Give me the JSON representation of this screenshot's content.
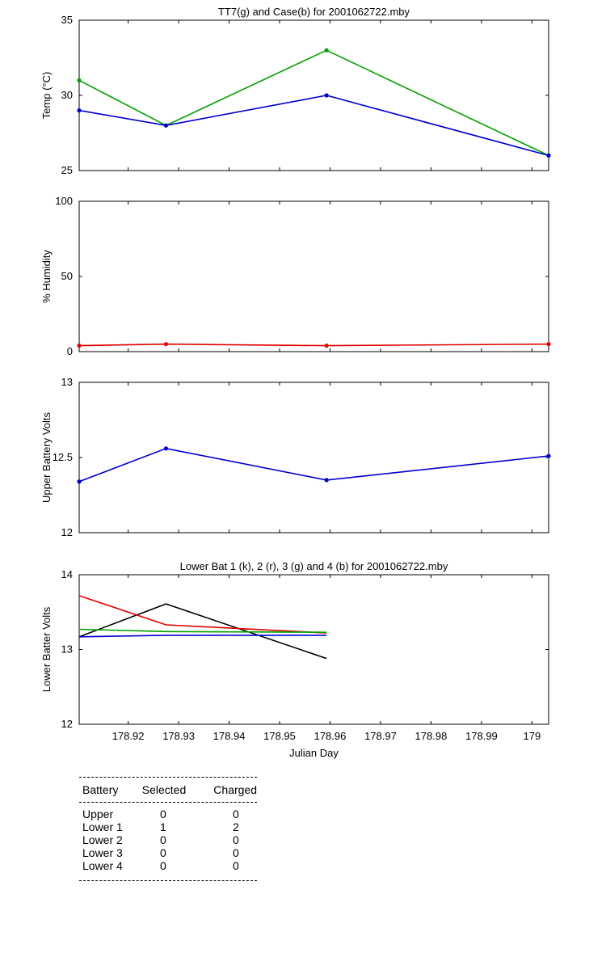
{
  "chart_data": [
    {
      "type": "line",
      "title": "TT7(g) and Case(b) for 2001062722.mby",
      "xlabel": "",
      "ylabel": "Temp  (°C)",
      "xlim": [
        178.9103,
        179.0033
      ],
      "ylim": [
        25,
        35
      ],
      "yticks": [
        "25",
        "30",
        "35"
      ],
      "grid": false,
      "series": [
        {
          "color": "#00a000",
          "marker": true,
          "x": [
            178.9103,
            178.9275,
            178.9593,
            179.0033
          ],
          "y": [
            31,
            28,
            33,
            26
          ]
        },
        {
          "color": "#0000d0",
          "marker": true,
          "x": [
            178.9103,
            178.9275,
            178.9593,
            179.0033
          ],
          "y": [
            29,
            28,
            30,
            26
          ]
        }
      ]
    },
    {
      "type": "line",
      "title": "",
      "xlabel": "",
      "ylabel": "% Humidity",
      "xlim": [
        178.9103,
        179.0033
      ],
      "ylim": [
        0,
        100
      ],
      "yticks": [
        "0",
        "50",
        "100"
      ],
      "grid": false,
      "series": [
        {
          "color": "#e00000",
          "marker": true,
          "x": [
            178.9103,
            178.9275,
            178.9593,
            179.0033
          ],
          "y": [
            4,
            5,
            4,
            5
          ]
        }
      ]
    },
    {
      "type": "line",
      "title": "",
      "xlabel": "",
      "ylabel": "Upper Battery Volts",
      "xlim": [
        178.9103,
        179.0033
      ],
      "ylim": [
        12,
        13
      ],
      "yticks": [
        "12",
        "12.5",
        "13"
      ],
      "grid": false,
      "series": [
        {
          "color": "#0000d0",
          "marker": true,
          "x": [
            178.9103,
            178.9275,
            178.9593,
            179.0033
          ],
          "y": [
            12.34,
            12.56,
            12.35,
            12.51
          ]
        }
      ]
    },
    {
      "type": "line",
      "title": "Lower Bat 1 (k), 2 (r), 3 (g) and 4 (b) for 2001062722.mby",
      "xlabel": "Julian Day",
      "ylabel": "Lower Batter Volts",
      "xlim": [
        178.9103,
        179.0033
      ],
      "ylim": [
        12,
        14
      ],
      "yticks": [
        "12",
        "13",
        "14"
      ],
      "xticks": [
        178.92,
        178.93,
        178.94,
        178.95,
        178.96,
        178.97,
        178.98,
        178.99,
        179.0
      ],
      "xticklabels": [
        "178.92",
        "178.93",
        "178.94",
        "178.95",
        "178.96",
        "178.97",
        "178.98",
        "178.99",
        "179"
      ],
      "grid": false,
      "series": [
        {
          "color": "#000000",
          "marker": false,
          "x": [
            178.9103,
            178.9275,
            178.9593
          ],
          "y": [
            13.17,
            13.61,
            12.88
          ]
        },
        {
          "color": "#e00000",
          "marker": false,
          "x": [
            178.9103,
            178.9275,
            178.9593
          ],
          "y": [
            13.72,
            13.33,
            13.22
          ]
        },
        {
          "color": "#00a000",
          "marker": false,
          "x": [
            178.9103,
            178.9275,
            178.9593
          ],
          "y": [
            13.27,
            13.24,
            13.23
          ]
        },
        {
          "color": "#0000d0",
          "marker": false,
          "x": [
            178.9103,
            178.9275,
            178.9593
          ],
          "y": [
            13.17,
            13.19,
            13.19
          ]
        }
      ]
    }
  ],
  "legend_table": {
    "headers": [
      "Battery",
      "Selected",
      "Charged"
    ],
    "rows": [
      {
        "battery": "Upper",
        "selected": "0",
        "charged": "0"
      },
      {
        "battery": "Lower 1",
        "selected": "1",
        "charged": "2"
      },
      {
        "battery": "Lower 2",
        "selected": "0",
        "charged": "0"
      },
      {
        "battery": "Lower 3",
        "selected": "0",
        "charged": "0"
      },
      {
        "battery": "Lower 4",
        "selected": "0",
        "charged": "0"
      }
    ]
  }
}
